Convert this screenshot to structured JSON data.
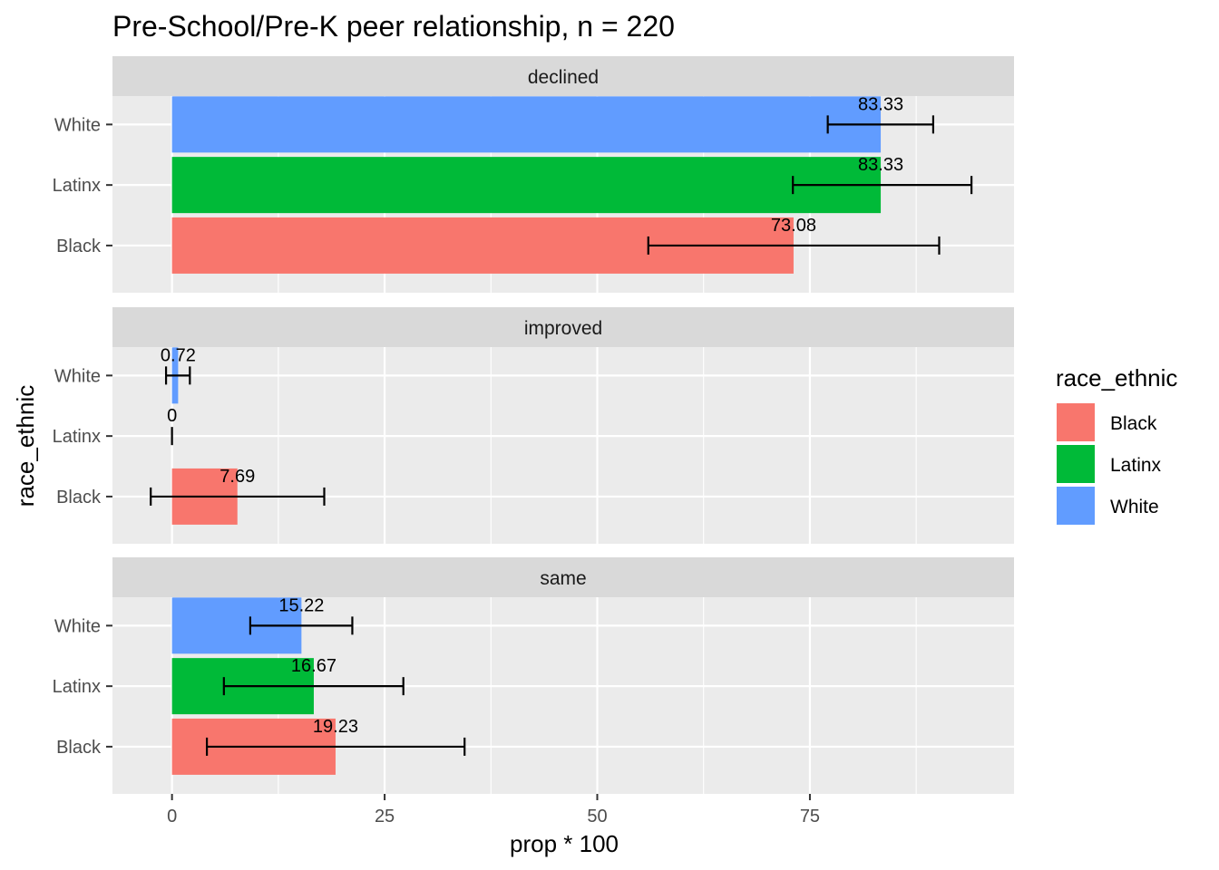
{
  "chart_data": {
    "type": "bar",
    "orientation": "horizontal",
    "title": "Pre-School/Pre-K peer relationship, n = 220",
    "xlabel": "prop * 100",
    "ylabel": "race_ethnic",
    "xlim": [
      -7,
      99
    ],
    "x_ticks": [
      0,
      25,
      50,
      75
    ],
    "x_tick_labels": [
      "0",
      "25",
      "50",
      "75"
    ],
    "categories": [
      "White",
      "Latinx",
      "Black"
    ],
    "legend": {
      "title": "race_ethnic",
      "position": "right",
      "entries": [
        {
          "label": "Black",
          "color": "#F8766D"
        },
        {
          "label": "Latinx",
          "color": "#00BA38"
        },
        {
          "label": "White",
          "color": "#619CFF"
        }
      ]
    },
    "facets": [
      {
        "label": "declined",
        "bars": [
          {
            "category": "White",
            "value": 83.33,
            "label": "83.33",
            "err_low": 77.1,
            "err_high": 89.5,
            "color": "#619CFF"
          },
          {
            "category": "Latinx",
            "value": 83.33,
            "label": "83.33",
            "err_low": 73.0,
            "err_high": 94.0,
            "color": "#00BA38"
          },
          {
            "category": "Black",
            "value": 73.08,
            "label": "73.08",
            "err_low": 56.0,
            "err_high": 90.2,
            "color": "#F8766D"
          }
        ]
      },
      {
        "label": "improved",
        "bars": [
          {
            "category": "White",
            "value": 0.72,
            "label": "0.72",
            "err_low": -0.7,
            "err_high": 2.1,
            "color": "#619CFF"
          },
          {
            "category": "Latinx",
            "value": 0,
            "label": "0",
            "err_low": 0,
            "err_high": 0,
            "color": "#00BA38"
          },
          {
            "category": "Black",
            "value": 7.69,
            "label": "7.69",
            "err_low": -2.5,
            "err_high": 17.9,
            "color": "#F8766D"
          }
        ]
      },
      {
        "label": "same",
        "bars": [
          {
            "category": "White",
            "value": 15.22,
            "label": "15.22",
            "err_low": 9.2,
            "err_high": 21.2,
            "color": "#619CFF"
          },
          {
            "category": "Latinx",
            "value": 16.67,
            "label": "16.67",
            "err_low": 6.1,
            "err_high": 27.2,
            "color": "#00BA38"
          },
          {
            "category": "Black",
            "value": 19.23,
            "label": "19.23",
            "err_low": 4.1,
            "err_high": 34.4,
            "color": "#F8766D"
          }
        ]
      }
    ],
    "grid": true,
    "panel_background": "#EBEBEB",
    "strip_background": "#D9D9D9"
  }
}
